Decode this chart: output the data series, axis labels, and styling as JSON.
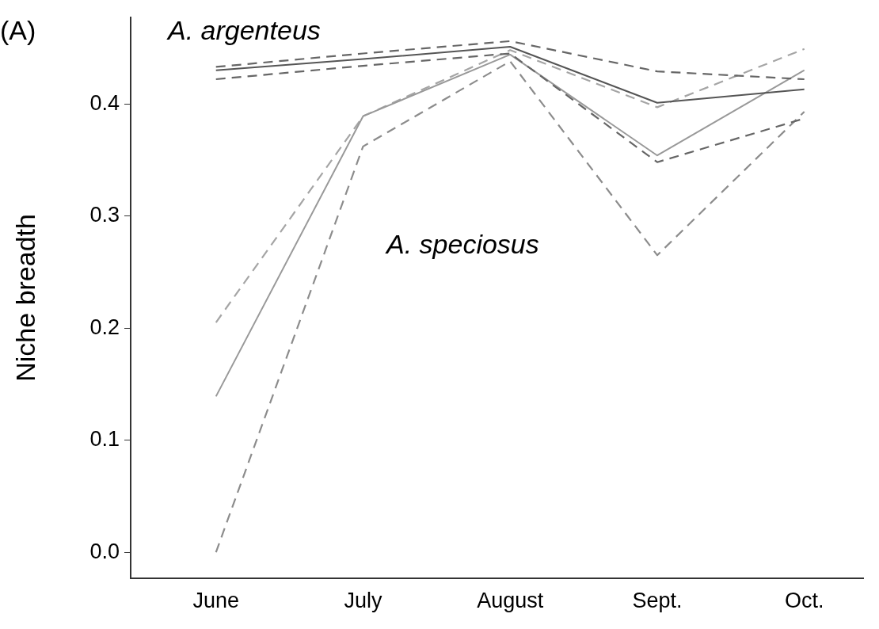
{
  "chart_data": {
    "type": "line",
    "ylabel": "Niche breadth",
    "categories": [
      "June",
      "July",
      "August",
      "Sept.",
      "Oct."
    ],
    "ylim": [
      -0.023,
      0.477
    ],
    "yticks": [
      {
        "value": 0,
        "label": "0.0"
      },
      {
        "value": 0.1,
        "label": "0.1"
      },
      {
        "value": 0.2,
        "label": "0.2"
      },
      {
        "value": 0.3,
        "label": "0.3"
      },
      {
        "value": 0.4,
        "label": "0.4"
      }
    ],
    "grid": false,
    "legend": false,
    "marker": "none",
    "series": [
      {
        "color": "#555555",
        "line_style": "solid",
        "values": [
          0.43,
          0.44,
          0.451,
          0.401,
          0.413
        ]
      },
      {
        "color": "#666666",
        "line_style": "dashed",
        "values": [
          0.433,
          0.445,
          0.456,
          0.429,
          0.422
        ]
      },
      {
        "color": "#666666",
        "line_style": "dashed",
        "values": [
          0.422,
          0.434,
          0.445,
          0.348,
          0.387
        ]
      },
      {
        "color": "#999999",
        "line_style": "solid",
        "values": [
          0.139,
          0.389,
          0.444,
          0.354,
          0.43
        ]
      },
      {
        "color": "#a5a5a5",
        "line_style": "dashed",
        "values": [
          0.205,
          0.389,
          0.448,
          0.397,
          0.449
        ]
      },
      {
        "color": "#8c8c8c",
        "line_style": "dashed",
        "values": [
          0.0,
          0.362,
          0.438,
          0.265,
          0.393
        ]
      }
    ],
    "annotations": [
      "(A)",
      "A. argenteus",
      "A. speciosus"
    ]
  }
}
